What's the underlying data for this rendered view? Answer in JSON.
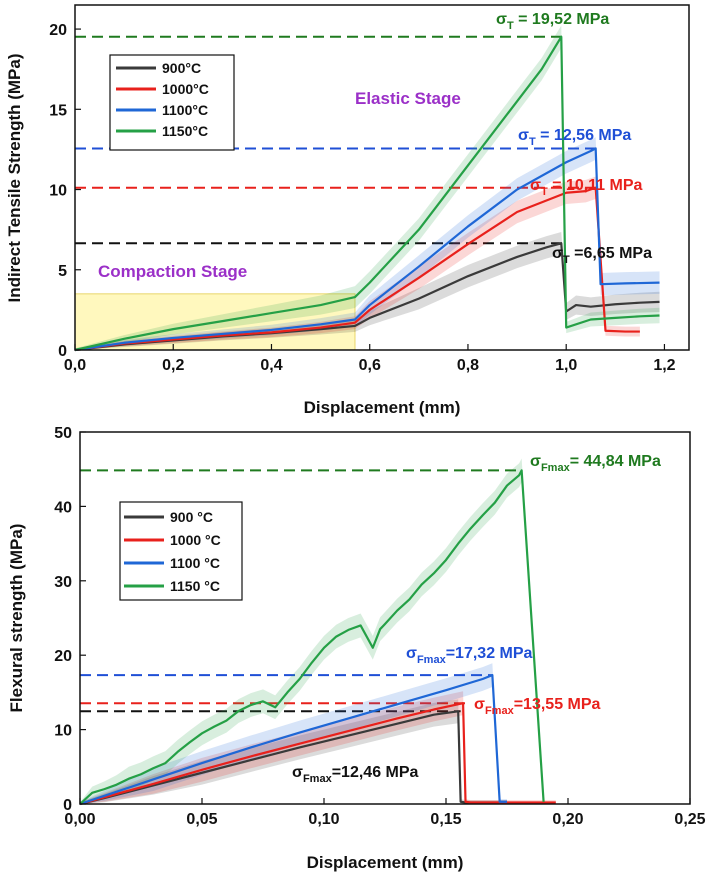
{
  "chart_data": [
    {
      "type": "line",
      "xlabel": "Displacement (mm)",
      "ylabel": "Indirect Tensile Strength (MPa)",
      "xlim": [
        0,
        1.25
      ],
      "ylim": [
        0,
        21.5
      ],
      "xticks": [
        "0,0",
        "0,2",
        "0,4",
        "0,6",
        "0,8",
        "1,0",
        "1,2"
      ],
      "xtick_values": [
        0,
        0.2,
        0.4,
        0.6,
        0.8,
        1.0,
        1.2
      ],
      "yticks": [
        "0",
        "5",
        "10",
        "15",
        "20"
      ],
      "ytick_values": [
        0,
        5,
        10,
        15,
        20
      ],
      "legend": [
        "900°C",
        "1000°C",
        "1100°C",
        "1150°C"
      ],
      "colors": [
        "#3a3a3a",
        "#e8211c",
        "#1f67d6",
        "#25a046"
      ],
      "series": [
        {
          "name": "900°C",
          "color": "#3a3a3a",
          "x": [
            0,
            0.1,
            0.2,
            0.3,
            0.4,
            0.5,
            0.57,
            0.6,
            0.7,
            0.8,
            0.9,
            0.96,
            0.99,
            1.0,
            1.02,
            1.05,
            1.1,
            1.15,
            1.19
          ],
          "y": [
            0,
            0.35,
            0.6,
            0.85,
            1.05,
            1.3,
            1.5,
            2.0,
            3.2,
            4.6,
            5.8,
            6.4,
            6.65,
            2.4,
            2.8,
            2.7,
            2.85,
            2.95,
            3.0
          ]
        },
        {
          "name": "1000°C",
          "color": "#e8211c",
          "x": [
            0,
            0.1,
            0.2,
            0.3,
            0.4,
            0.5,
            0.57,
            0.6,
            0.7,
            0.8,
            0.9,
            1.0,
            1.04,
            1.06,
            1.08,
            1.12,
            1.15
          ],
          "y": [
            0,
            0.4,
            0.65,
            0.9,
            1.1,
            1.4,
            1.7,
            2.5,
            4.5,
            6.6,
            8.6,
            9.8,
            9.9,
            10.11,
            1.2,
            1.15,
            1.15
          ]
        },
        {
          "name": "1100°C",
          "color": "#1f67d6",
          "x": [
            0,
            0.1,
            0.2,
            0.3,
            0.4,
            0.5,
            0.57,
            0.6,
            0.7,
            0.8,
            0.9,
            1.0,
            1.05,
            1.06,
            1.07,
            1.12,
            1.19
          ],
          "y": [
            0,
            0.45,
            0.75,
            1.0,
            1.25,
            1.6,
            1.9,
            2.8,
            5.2,
            7.7,
            10.0,
            11.7,
            12.4,
            12.56,
            4.1,
            4.15,
            4.2
          ]
        },
        {
          "name": "1150°C",
          "color": "#25a046",
          "x": [
            0,
            0.1,
            0.2,
            0.3,
            0.4,
            0.5,
            0.57,
            0.6,
            0.7,
            0.8,
            0.9,
            0.95,
            0.99,
            1.0,
            1.05,
            1.1,
            1.15,
            1.19
          ],
          "y": [
            0,
            0.7,
            1.3,
            1.8,
            2.3,
            2.8,
            3.3,
            4.2,
            7.5,
            11.5,
            15.5,
            17.5,
            19.52,
            1.4,
            1.9,
            2.0,
            2.1,
            2.15
          ]
        }
      ],
      "reference_lines": [
        {
          "label": "σT = 19,52 MPa",
          "prefix": "σ",
          "sub": "T",
          "suffix": " = 19,52 MPa",
          "value": 19.52,
          "color": "#1f7a1f",
          "x_end": 1.0
        },
        {
          "label": "σT = 12,56 MPa",
          "prefix": "σ",
          "sub": "T",
          "suffix": " = 12,56 MPa",
          "value": 12.56,
          "color": "#1f4fd6",
          "x_end": 1.06
        },
        {
          "label": "σT = 10,11 MPa",
          "prefix": "σ",
          "sub": "T",
          "suffix": " = 10,11 MPa",
          "value": 10.11,
          "color": "#e8211c",
          "x_end": 1.06
        },
        {
          "label": "σT =6,65 MPa",
          "prefix": "σ",
          "sub": "T",
          "suffix": " =6,65 MPa",
          "value": 6.65,
          "color": "#111111",
          "x_end": 1.0
        }
      ],
      "annotations": [
        "Elastic Stage",
        "Compaction Stage"
      ],
      "highlight_region": {
        "x": [
          0,
          0.57
        ],
        "y": [
          0,
          3.5
        ],
        "color": "#fff5a8"
      }
    },
    {
      "type": "line",
      "xlabel": "Displacement (mm)",
      "ylabel": "Flexural strength (MPa)",
      "xlim": [
        0,
        0.25
      ],
      "ylim": [
        0,
        50
      ],
      "xticks": [
        "0,00",
        "0,05",
        "0,10",
        "0,15",
        "0,20",
        "0,25"
      ],
      "xtick_values": [
        0,
        0.05,
        0.1,
        0.15,
        0.2,
        0.25
      ],
      "yticks": [
        "0",
        "10",
        "20",
        "30",
        "40",
        "50"
      ],
      "ytick_values": [
        0,
        10,
        20,
        30,
        40,
        50
      ],
      "legend": [
        "900 °C",
        "1000 °C",
        "1100 °C",
        "1150 °C"
      ],
      "colors": [
        "#3a3a3a",
        "#e8211c",
        "#1f67d6",
        "#25a046"
      ],
      "series": [
        {
          "name": "900 °C",
          "color": "#3a3a3a",
          "x": [
            0,
            0.01,
            0.03,
            0.05,
            0.07,
            0.09,
            0.11,
            0.13,
            0.145,
            0.155,
            0.156,
            0.158,
            0.175
          ],
          "y": [
            0,
            0.8,
            2.5,
            4.2,
            5.9,
            7.6,
            9.2,
            10.8,
            12.0,
            12.46,
            0.3,
            0.2,
            0.2
          ]
        },
        {
          "name": "1000 °C",
          "color": "#e8211c",
          "x": [
            0,
            0.01,
            0.03,
            0.05,
            0.07,
            0.09,
            0.11,
            0.13,
            0.145,
            0.157,
            0.158,
            0.16,
            0.195
          ],
          "y": [
            0,
            0.9,
            2.7,
            4.6,
            6.4,
            8.1,
            9.8,
            11.5,
            12.7,
            13.55,
            0.3,
            0.2,
            0.2
          ]
        },
        {
          "name": "1100 °C",
          "color": "#1f67d6",
          "x": [
            0,
            0.01,
            0.03,
            0.05,
            0.07,
            0.09,
            0.11,
            0.13,
            0.15,
            0.165,
            0.169,
            0.172,
            0.175
          ],
          "y": [
            0,
            1.1,
            3.3,
            5.5,
            7.6,
            9.6,
            11.5,
            13.4,
            15.3,
            16.8,
            17.32,
            0.3,
            0.3
          ]
        },
        {
          "name": "1150 °C",
          "color": "#25a046",
          "x": [
            0,
            0.005,
            0.01,
            0.015,
            0.02,
            0.025,
            0.03,
            0.035,
            0.04,
            0.045,
            0.05,
            0.055,
            0.06,
            0.065,
            0.07,
            0.075,
            0.08,
            0.085,
            0.09,
            0.095,
            0.1,
            0.105,
            0.11,
            0.115,
            0.12,
            0.123,
            0.125,
            0.13,
            0.135,
            0.14,
            0.145,
            0.15,
            0.155,
            0.16,
            0.165,
            0.17,
            0.175,
            0.18,
            0.181,
            0.19
          ],
          "y": [
            0,
            1.5,
            2.0,
            2.6,
            3.4,
            4.0,
            4.8,
            5.5,
            7.0,
            8.3,
            9.5,
            10.4,
            11.2,
            12.5,
            13.3,
            13.8,
            13.0,
            15.0,
            16.8,
            19.0,
            21.0,
            22.5,
            23.4,
            24.0,
            21.0,
            23.5,
            24.2,
            26.0,
            27.5,
            29.5,
            31.0,
            32.8,
            35.0,
            37.0,
            38.8,
            40.5,
            42.8,
            44.2,
            44.84,
            0.3
          ]
        }
      ],
      "reference_lines": [
        {
          "label": "σFmax= 44,84 MPa",
          "prefix": "σ",
          "sub": "Fmax",
          "suffix": "= 44,84 MPa",
          "value": 44.84,
          "color": "#1f7a1f",
          "x_end": 0.181
        },
        {
          "label": "σFmax=17,32 MPa",
          "prefix": "σ",
          "sub": "Fmax",
          "suffix": "=17,32 MPa",
          "value": 17.32,
          "color": "#1f4fd6",
          "x_end": 0.169
        },
        {
          "label": "σFmax=13,55 MPa",
          "prefix": "σ",
          "sub": "Fmax",
          "suffix": "=13,55 MPa",
          "value": 13.55,
          "color": "#e8211c",
          "x_end": 0.158
        },
        {
          "label": "σFmax=12,46 MPa",
          "prefix": "σ",
          "sub": "Fmax",
          "suffix": "=12,46 MPa",
          "value": 12.46,
          "color": "#111111",
          "x_end": 0.156
        }
      ]
    }
  ]
}
